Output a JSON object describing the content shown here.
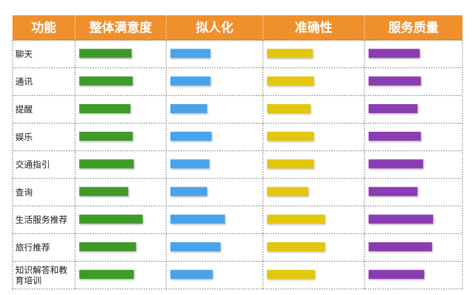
{
  "colors": {
    "header_bg": "#f0902c",
    "header_text": "#ffffff",
    "grid_line": "#5a5a5a",
    "series": [
      "#3f9a2a",
      "#4aa3ea",
      "#e2c710",
      "#8a3db1"
    ]
  },
  "chart_data": {
    "type": "table",
    "columns": [
      "功能",
      "整体满意度",
      "拟人化",
      "准确性",
      "服务质量"
    ],
    "rows": [
      {
        "label": [
          "聊天"
        ],
        "values": [
          0.47,
          0.36,
          0.41,
          0.46
        ]
      },
      {
        "label": [
          "通讯"
        ],
        "values": [
          0.48,
          0.36,
          0.42,
          0.47
        ]
      },
      {
        "label": [
          "提醒"
        ],
        "values": [
          0.46,
          0.33,
          0.39,
          0.44
        ]
      },
      {
        "label": [
          "娱乐"
        ],
        "values": [
          0.48,
          0.37,
          0.42,
          0.47
        ]
      },
      {
        "label": [
          "交通指引"
        ],
        "values": [
          0.49,
          0.35,
          0.42,
          0.49
        ]
      },
      {
        "label": [
          "查询"
        ],
        "values": [
          0.44,
          0.33,
          0.37,
          0.44
        ]
      },
      {
        "label": [
          "生活服务推荐"
        ],
        "values": [
          0.57,
          0.49,
          0.52,
          0.58
        ]
      },
      {
        "label": [
          "旅行推荐"
        ],
        "values": [
          0.51,
          0.45,
          0.52,
          0.57
        ]
      },
      {
        "label": [
          "知识解答和教",
          "育培训"
        ],
        "values": [
          0.49,
          0.38,
          0.43,
          0.5
        ]
      }
    ]
  }
}
